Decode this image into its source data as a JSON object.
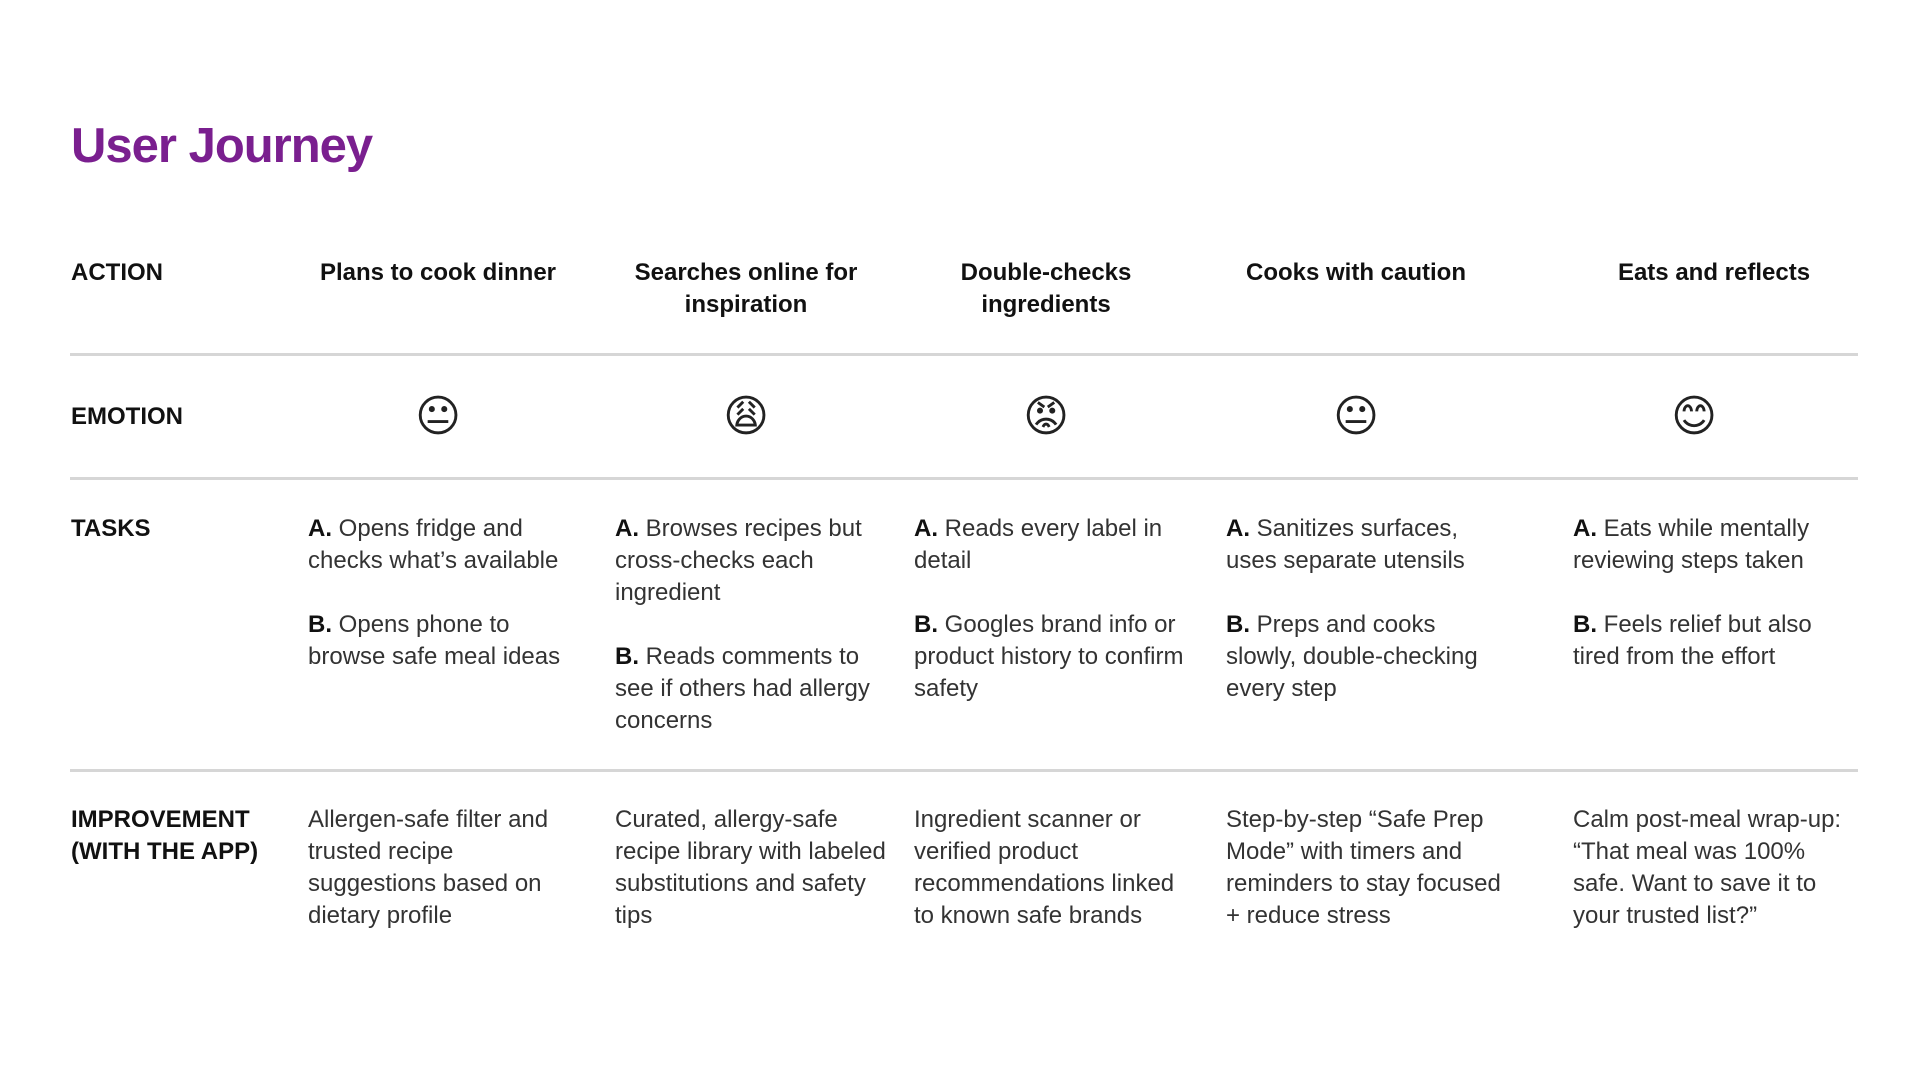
{
  "title": "User Journey",
  "row_labels": {
    "action": "ACTION",
    "emotion": "EMOTION",
    "tasks": "TASKS",
    "improvement": "IMPROVEMENT (WITH THE APP)"
  },
  "stages": [
    {
      "action": "Plans to cook dinner",
      "emotion": "😐",
      "tasks": [
        {
          "label": "A.",
          "text": "Opens fridge and checks what’s available"
        },
        {
          "label": "B.",
          "text": "Opens phone to browse safe meal ideas"
        }
      ],
      "improvement": "Allergen-safe filter and trusted recipe suggestions based on dietary profile"
    },
    {
      "action": "Searches online for inspiration",
      "emotion": "😩",
      "tasks": [
        {
          "label": "A.",
          "text": "Browses recipes but cross-checks each ingredient"
        },
        {
          "label": "B.",
          "text": "Reads comments to see if others had allergy concerns"
        }
      ],
      "improvement": "Curated, allergy-safe recipe library with labeled substitutions and safety tips"
    },
    {
      "action": "Double-checks ingredients",
      "emotion": "😡",
      "tasks": [
        {
          "label": "A.",
          "text": "Reads every label in detail"
        },
        {
          "label": "B.",
          "text": "Googles brand info or product history to confirm safety"
        }
      ],
      "improvement": "Ingredient scanner or verified product recommendations linked to known safe brands"
    },
    {
      "action": "Cooks with caution",
      "emotion": "😐",
      "tasks": [
        {
          "label": "A.",
          "text": "Sanitizes surfaces, uses separate utensils"
        },
        {
          "label": "B.",
          "text": "Preps and cooks slowly, double-checking every step"
        }
      ],
      "improvement": "Step-by-step “Safe Prep Mode” with timers and reminders to stay focused + reduce stress"
    },
    {
      "action": "Eats and reflects",
      "emotion": "😊",
      "tasks": [
        {
          "label": "A.",
          "text": "Eats while mentally reviewing steps taken"
        },
        {
          "label": "B.",
          "text": "Feels relief but also tired from the effort"
        }
      ],
      "improvement": "Calm post-meal wrap-up: “That meal was 100% safe. Want to save it to your trusted list?”"
    }
  ]
}
